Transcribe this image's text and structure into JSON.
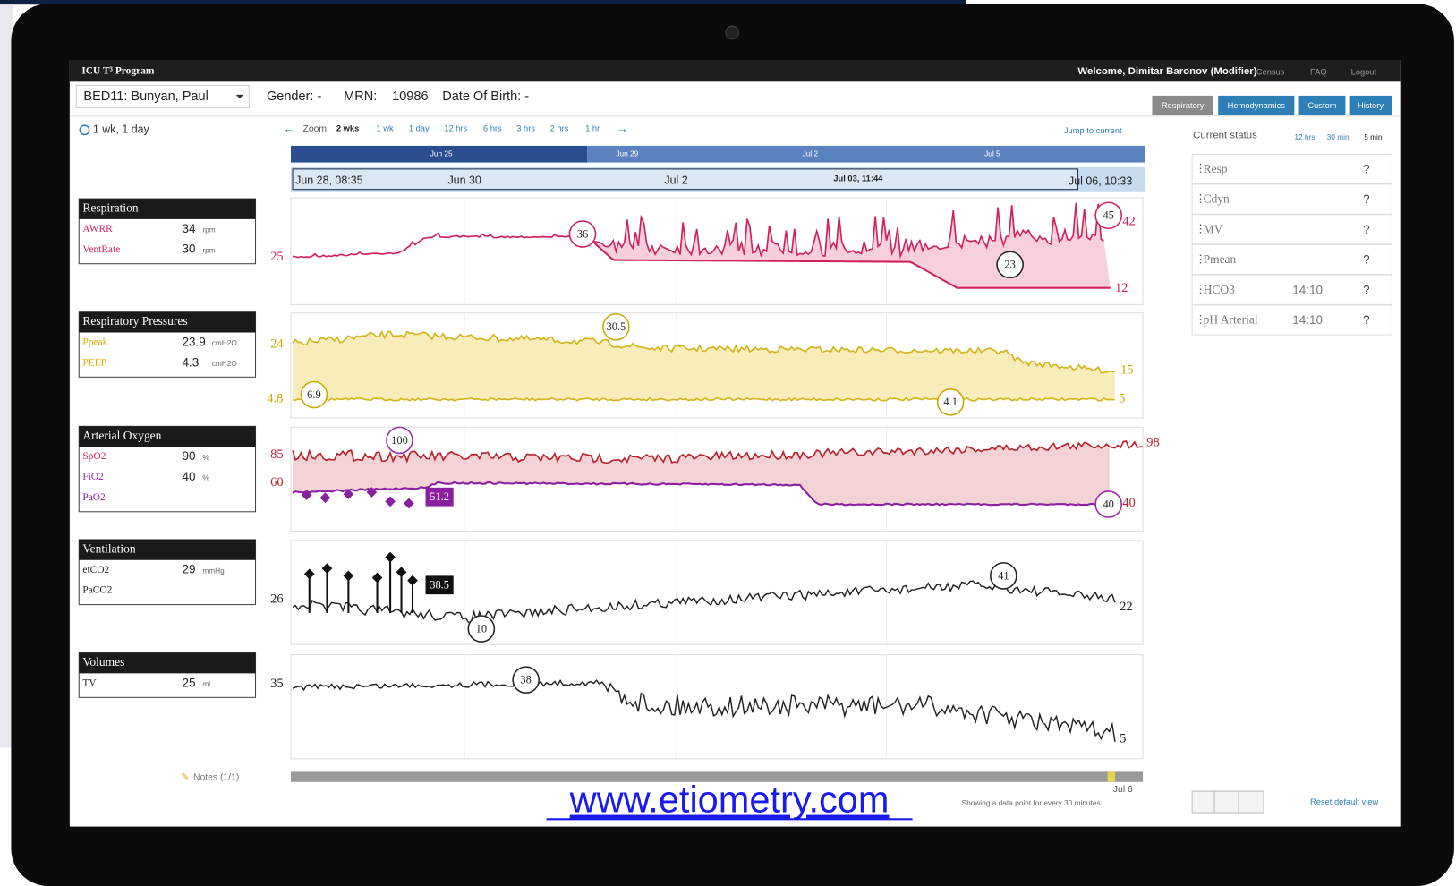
{
  "header": {
    "app_title": "ICU T³ Program",
    "welcome": "Welcome, Dimitar Baronov (Modifier)",
    "links": [
      "Census",
      "FAQ",
      "Logout"
    ]
  },
  "patient": {
    "bed": "BED11: Bunyan, Paul",
    "gender": "Gender: -",
    "mrn_label": "MRN:",
    "mrn": "10986",
    "dob": "Date Of Birth: -"
  },
  "tabs": [
    "Respiratory",
    "Hemodynamics",
    "Custom",
    "History"
  ],
  "timespan": "1 wk, 1 day",
  "zoom": {
    "label": "Zoom:",
    "options": [
      "2 wks",
      "1 wk",
      "1 day",
      "12 hrs",
      "6 hrs",
      "3 hrs",
      "2 hrs",
      "1 hr"
    ],
    "jump": "Jump to current"
  },
  "timeline": {
    "overview": [
      "Jun 25",
      "Jun 29",
      "Jul 2",
      "Jul 5"
    ],
    "start": "Jun 28, 08:35",
    "labels": [
      "Jun 30",
      "Jul 2"
    ],
    "cursor": "Jul 03, 11:44",
    "end": "Jul 06, 10:33"
  },
  "panels": [
    {
      "title": "Respiration",
      "rows": [
        {
          "name": "AWRR",
          "value": "34",
          "unit": "rpm"
        },
        {
          "name": "VentRate",
          "value": "30",
          "unit": "rpm"
        }
      ]
    },
    {
      "title": "Respiratory Pressures",
      "rows": [
        {
          "name": "Ppeak",
          "value": "23.9",
          "unit": "cmH2O"
        },
        {
          "name": "PEEP",
          "value": "4.3",
          "unit": "cmH2O"
        }
      ]
    },
    {
      "title": "Arterial Oxygen",
      "rows": [
        {
          "name": "SpO2",
          "value": "90",
          "unit": "%"
        },
        {
          "name": "FiO2",
          "value": "40",
          "unit": "%"
        },
        {
          "name": "PaO2"
        }
      ]
    },
    {
      "title": "Ventilation",
      "rows": [
        {
          "name": "etCO2",
          "value": "29",
          "unit": "mmHg"
        },
        {
          "name": "PaCO2"
        }
      ]
    },
    {
      "title": "Volumes",
      "rows": [
        {
          "name": "TV",
          "value": "25",
          "unit": "ml"
        }
      ]
    }
  ],
  "charts": [
    {
      "axis_labels": [
        "25"
      ],
      "markers": [
        "36",
        "45",
        "23"
      ],
      "right_labels": [
        "42",
        "12"
      ]
    },
    {
      "axis_labels": [
        "24",
        "4.8"
      ],
      "markers": [
        "30.5",
        "6.9",
        "4.1"
      ],
      "right_labels": [
        "15",
        "5"
      ]
    },
    {
      "axis_labels": [
        "85",
        "60"
      ],
      "markers": [
        "100",
        "51.2",
        "40"
      ],
      "right_labels": [
        "98",
        "40"
      ]
    },
    {
      "axis_labels": [
        "26"
      ],
      "markers": [
        "38.5",
        "10",
        "41"
      ],
      "right_labels": [
        "22"
      ]
    },
    {
      "axis_labels": [
        "35"
      ],
      "markers": [
        "38"
      ],
      "right_labels": [
        "5"
      ]
    }
  ],
  "notes": "Notes (1/1)",
  "status": {
    "title": "Current status",
    "resolution": [
      "12 hrs",
      "30 min",
      "5 min"
    ],
    "rows": [
      {
        "name": "Resp",
        "value": "?"
      },
      {
        "name": "Cdyn",
        "value": "?"
      },
      {
        "name": "MV",
        "value": "?"
      },
      {
        "name": "Pmean",
        "value": "?"
      },
      {
        "name": "HCO3",
        "time": "14:10",
        "value": "?"
      },
      {
        "name": "pH Arterial",
        "time": "14:10",
        "value": "?"
      }
    ]
  },
  "footer": {
    "date": "Jul 6",
    "sampling": "Showing a data point for every 30 minutes",
    "reset": "Reset default view"
  },
  "link": "www.etiometry.com"
}
